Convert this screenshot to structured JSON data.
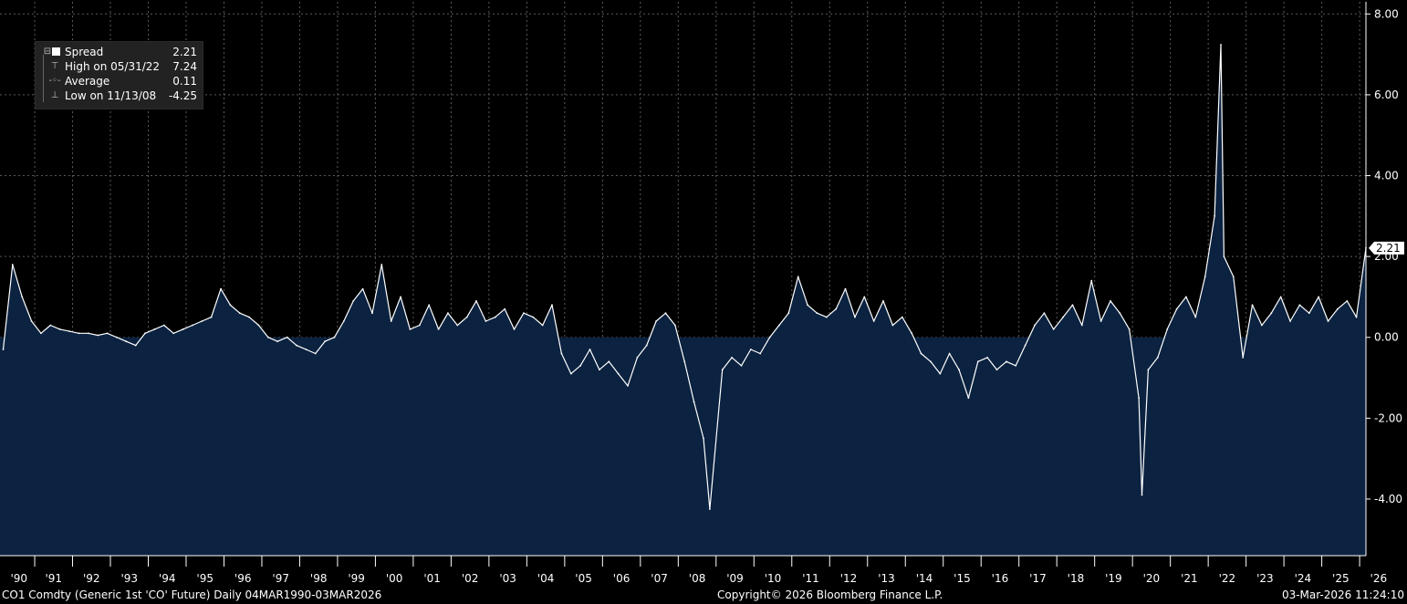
{
  "chart_data": {
    "type": "area",
    "series": [
      {
        "name": "Spread",
        "x": [
          "1990-03",
          "1990-06",
          "1990-09",
          "1990-12",
          "1991-03",
          "1991-06",
          "1991-09",
          "1991-12",
          "1992-03",
          "1992-06",
          "1992-09",
          "1992-12",
          "1993-03",
          "1993-06",
          "1993-09",
          "1993-12",
          "1994-03",
          "1994-06",
          "1994-09",
          "1994-12",
          "1995-03",
          "1995-06",
          "1995-09",
          "1995-12",
          "1996-03",
          "1996-06",
          "1996-09",
          "1996-12",
          "1997-03",
          "1997-06",
          "1997-09",
          "1997-12",
          "1998-03",
          "1998-06",
          "1998-09",
          "1998-12",
          "1999-03",
          "1999-06",
          "1999-09",
          "1999-12",
          "2000-03",
          "2000-06",
          "2000-09",
          "2000-12",
          "2001-03",
          "2001-06",
          "2001-09",
          "2001-12",
          "2002-03",
          "2002-06",
          "2002-09",
          "2002-12",
          "2003-03",
          "2003-06",
          "2003-09",
          "2003-12",
          "2004-03",
          "2004-06",
          "2004-09",
          "2004-12",
          "2005-03",
          "2005-06",
          "2005-09",
          "2005-12",
          "2006-03",
          "2006-06",
          "2006-09",
          "2006-12",
          "2007-03",
          "2007-06",
          "2007-09",
          "2007-12",
          "2008-03",
          "2008-06",
          "2008-09",
          "2008-11",
          "2009-03",
          "2009-06",
          "2009-09",
          "2009-12",
          "2010-03",
          "2010-06",
          "2010-09",
          "2010-12",
          "2011-03",
          "2011-06",
          "2011-09",
          "2011-12",
          "2012-03",
          "2012-06",
          "2012-09",
          "2012-12",
          "2013-03",
          "2013-06",
          "2013-09",
          "2013-12",
          "2014-03",
          "2014-06",
          "2014-09",
          "2014-12",
          "2015-03",
          "2015-06",
          "2015-09",
          "2015-12",
          "2016-03",
          "2016-06",
          "2016-09",
          "2016-12",
          "2017-03",
          "2017-06",
          "2017-09",
          "2017-12",
          "2018-03",
          "2018-06",
          "2018-09",
          "2018-12",
          "2019-03",
          "2019-06",
          "2019-09",
          "2019-12",
          "2020-03",
          "2020-04",
          "2020-06",
          "2020-09",
          "2020-12",
          "2021-03",
          "2021-06",
          "2021-09",
          "2021-12",
          "2022-03",
          "2022-05",
          "2022-06",
          "2022-09",
          "2022-12",
          "2023-03",
          "2023-06",
          "2023-09",
          "2023-12",
          "2024-03",
          "2024-06",
          "2024-09",
          "2024-12",
          "2025-03",
          "2025-06",
          "2025-09",
          "2025-12",
          "2026-03"
        ],
        "y": [
          -0.3,
          1.8,
          1.0,
          0.4,
          0.1,
          0.3,
          0.2,
          0.15,
          0.1,
          0.1,
          0.05,
          0.1,
          0.0,
          -0.1,
          -0.2,
          0.1,
          0.2,
          0.3,
          0.1,
          0.2,
          0.3,
          0.4,
          0.5,
          1.2,
          0.8,
          0.6,
          0.5,
          0.3,
          0.0,
          -0.1,
          0.0,
          -0.2,
          -0.3,
          -0.4,
          -0.1,
          0.0,
          0.4,
          0.9,
          1.2,
          0.6,
          1.8,
          0.4,
          1.0,
          0.2,
          0.3,
          0.8,
          0.2,
          0.6,
          0.3,
          0.5,
          0.9,
          0.4,
          0.5,
          0.7,
          0.2,
          0.6,
          0.5,
          0.3,
          0.8,
          -0.4,
          -0.9,
          -0.7,
          -0.3,
          -0.8,
          -0.6,
          -0.9,
          -1.2,
          -0.5,
          -0.2,
          0.4,
          0.6,
          0.3,
          -0.6,
          -1.6,
          -2.5,
          -4.25,
          -0.8,
          -0.5,
          -0.7,
          -0.3,
          -0.4,
          0.0,
          0.3,
          0.6,
          1.5,
          0.8,
          0.6,
          0.5,
          0.7,
          1.2,
          0.5,
          1.0,
          0.4,
          0.9,
          0.3,
          0.5,
          0.1,
          -0.4,
          -0.6,
          -0.9,
          -0.4,
          -0.8,
          -1.5,
          -0.6,
          -0.5,
          -0.8,
          -0.6,
          -0.7,
          -0.2,
          0.3,
          0.6,
          0.2,
          0.5,
          0.8,
          0.3,
          1.4,
          0.4,
          0.9,
          0.6,
          0.2,
          -1.5,
          -3.9,
          -0.8,
          -0.5,
          0.2,
          0.7,
          1.0,
          0.5,
          1.5,
          3.0,
          7.24,
          2.0,
          1.5,
          -0.5,
          0.8,
          0.3,
          0.6,
          1.0,
          0.4,
          0.8,
          0.6,
          1.0,
          0.4,
          0.7,
          0.9,
          0.5,
          2.21
        ]
      }
    ],
    "xlim": [
      "1990-02",
      "2026-03"
    ],
    "ylim": [
      -5.4,
      8.3
    ],
    "y_ticks": [
      "-4.00",
      "-2.00",
      "0.00",
      "2.00",
      "4.00",
      "6.00",
      "8.00"
    ],
    "x_tick_labels": [
      "'90",
      "'91",
      "'92",
      "'93",
      "'94",
      "'95",
      "'96",
      "'97",
      "'98",
      "'99",
      "'00",
      "'01",
      "'02",
      "'03",
      "'04",
      "'05",
      "'06",
      "'07",
      "'08",
      "'09",
      "'10",
      "'11",
      "'12",
      "'13",
      "'14",
      "'15",
      "'16",
      "'17",
      "'18",
      "'19",
      "'20",
      "'21",
      "'22",
      "'23",
      "'24",
      "'25",
      "'26"
    ],
    "last_value_label": "2.21",
    "grid": true,
    "legend_position": "top-left",
    "colors": {
      "background": "#000000",
      "fill": "#0b2240",
      "line": "#ffffff",
      "grid": "#5a5a5a",
      "axis": "#ffffff"
    }
  },
  "legend": {
    "rows": [
      {
        "label": "Spread",
        "value": "2.21"
      },
      {
        "label": "High on 05/31/22",
        "value": "7.24"
      },
      {
        "label": "Average",
        "value": "0.11"
      },
      {
        "label": "Low on 11/13/08",
        "value": "-4.25"
      }
    ],
    "icons": [
      "collapse-box-icon",
      "high-marker-icon",
      "average-marker-icon",
      "low-marker-icon"
    ]
  },
  "footer": {
    "left": "CO1 Comdty (Generic 1st 'CO' Future) Daily 04MAR1990-03MAR2026",
    "center": "Copyright© 2026 Bloomberg Finance L.P.",
    "right": "03-Mar-2026 11:24:10"
  }
}
